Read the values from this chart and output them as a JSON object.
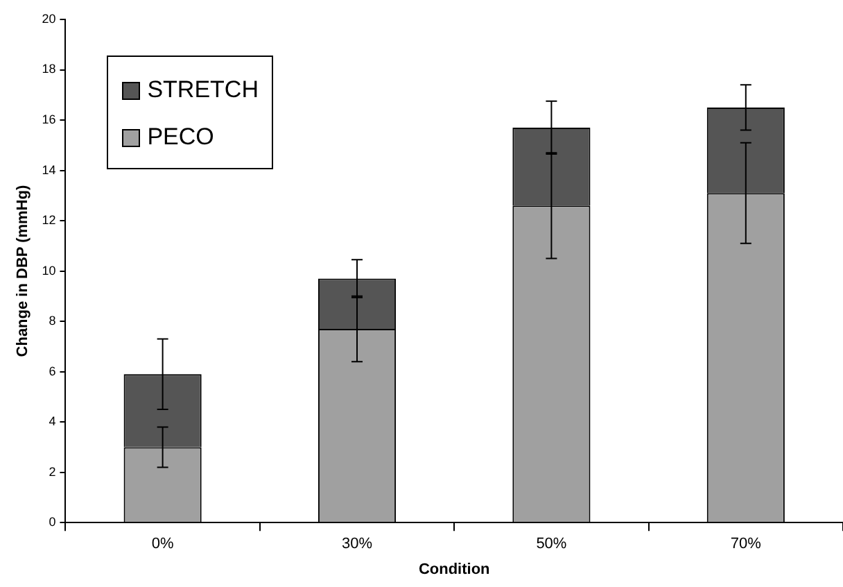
{
  "chart_data": {
    "type": "bar",
    "stacked": true,
    "xlabel": "Condition",
    "ylabel": "Change in DBP (mmHg)",
    "categories": [
      "0%",
      "30%",
      "50%",
      "70%"
    ],
    "series": [
      {
        "name": "PECO",
        "color": "#a0a0a0",
        "values": [
          3.0,
          7.7,
          12.6,
          13.1
        ],
        "errors": [
          0.8,
          1.3,
          2.1,
          2.0
        ]
      },
      {
        "name": "STRETCH",
        "color": "#555555",
        "values": [
          2.9,
          2.0,
          3.1,
          3.4
        ],
        "errors": [
          1.4,
          0.75,
          1.05,
          0.9
        ]
      }
    ],
    "ylim": [
      0,
      20
    ],
    "yticks": [
      0,
      2,
      4,
      6,
      8,
      10,
      12,
      14,
      16,
      18,
      20
    ],
    "grid": false,
    "legend": "top left"
  }
}
